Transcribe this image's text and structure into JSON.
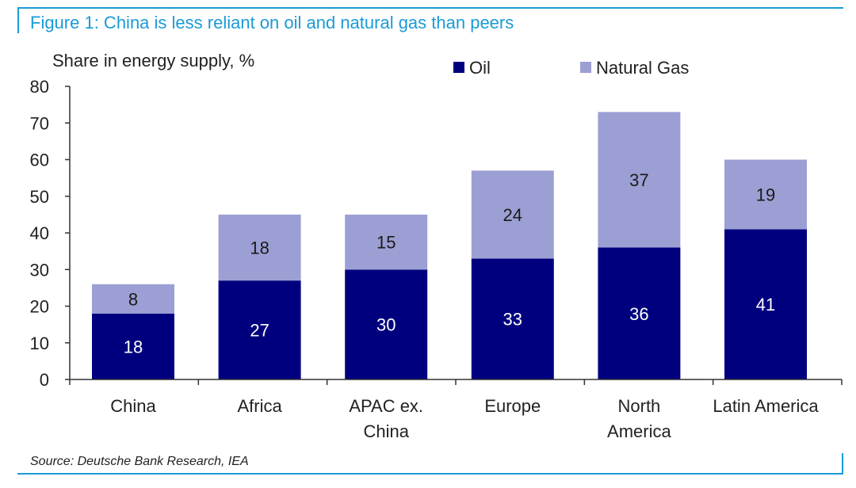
{
  "title": "Figure 1: China is less reliant on oil and natural gas than peers",
  "source": "Source: Deutsche Bank Research, IEA",
  "colors": {
    "accent": "#1a9bd6",
    "oil": "#00007f",
    "gas": "#9c9fd3"
  },
  "chart_data": {
    "type": "bar",
    "stacked": true,
    "ylabel": "Share in energy supply, %",
    "ylim": [
      0,
      80
    ],
    "yticks": [
      "0",
      "10",
      "20",
      "30",
      "40",
      "50",
      "60",
      "70",
      "80"
    ],
    "categories": [
      [
        "China"
      ],
      [
        "Africa"
      ],
      [
        "APAC ex.",
        "China"
      ],
      [
        "Europe"
      ],
      [
        "North",
        "America"
      ],
      [
        "Latin America"
      ]
    ],
    "series": [
      {
        "name": "Oil",
        "values": [
          18,
          27,
          30,
          33,
          36,
          41
        ]
      },
      {
        "name": "Natural Gas",
        "values": [
          8,
          18,
          15,
          24,
          37,
          19
        ]
      }
    ],
    "legend": [
      "Oil",
      "Natural Gas"
    ],
    "legend_position": "top-right"
  }
}
